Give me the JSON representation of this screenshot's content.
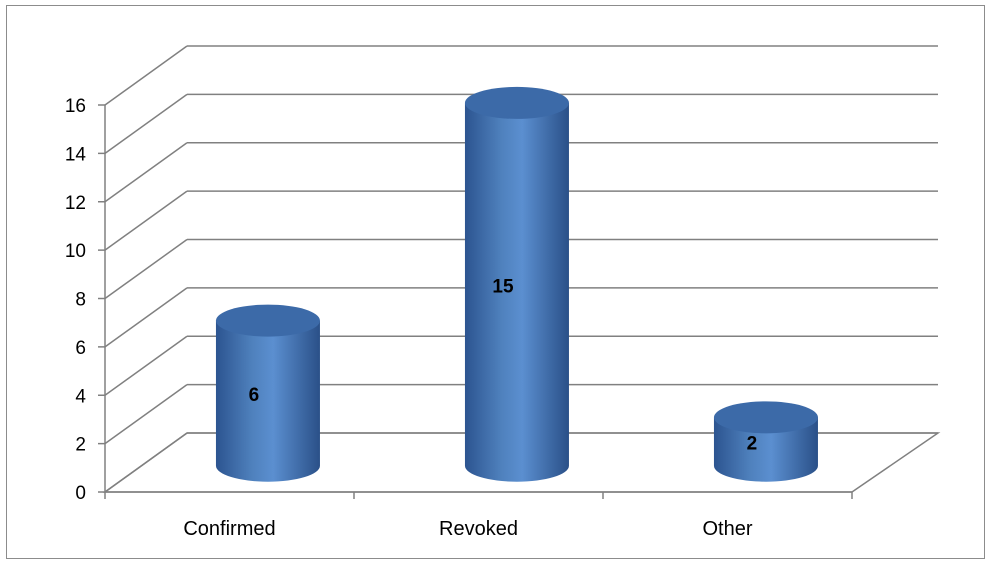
{
  "chart_data": {
    "type": "bar",
    "style": "3d-cylinder",
    "categories": [
      "Confirmed",
      "Revoked",
      "Other"
    ],
    "values": [
      6,
      15,
      2
    ],
    "data_labels": [
      "6",
      "15",
      "2"
    ],
    "ylim": [
      0,
      16
    ],
    "yticks": [
      "0",
      "2",
      "4",
      "6",
      "8",
      "10",
      "12",
      "14",
      "16"
    ],
    "grid": true,
    "legend": "none",
    "colors": {
      "bar": "#4f81bd",
      "bar_dark": "#2c5490",
      "bar_top": "#3c6aa8",
      "grid": "#808080"
    }
  }
}
